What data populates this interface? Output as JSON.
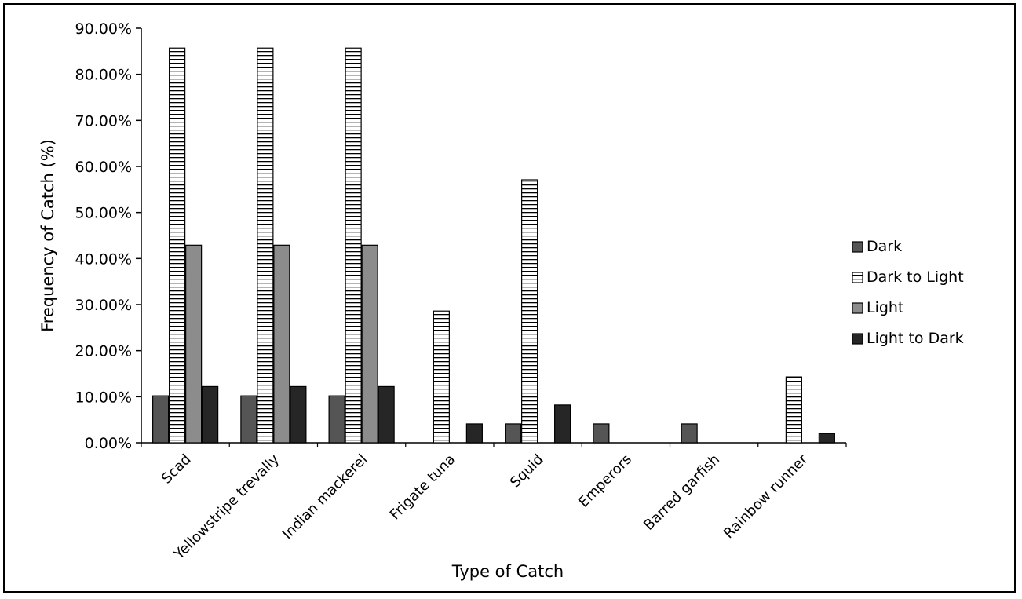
{
  "chart_data": {
    "type": "bar",
    "title": "",
    "xlabel": "Type of Catch",
    "ylabel": "Frequency of Catch (%)",
    "ylim": [
      0,
      90
    ],
    "yticks": [
      "0.00%",
      "10.00%",
      "20.00%",
      "30.00%",
      "40.00%",
      "50.00%",
      "60.00%",
      "70.00%",
      "80.00%",
      "90.00%"
    ],
    "categories": [
      "Scad",
      "Yellowstripe trevally",
      "Indian mackerel",
      "Frigate tuna",
      "Squid",
      "Emperors",
      "Barred garfish",
      "Rainbow runner"
    ],
    "series": [
      {
        "name": "Dark",
        "values": [
          10.2,
          10.2,
          10.2,
          0,
          4.1,
          4.1,
          4.1,
          0
        ],
        "fill": "#555555",
        "pattern": "solid"
      },
      {
        "name": "Dark to Light",
        "values": [
          85.7,
          85.7,
          85.7,
          28.6,
          57.1,
          0,
          0,
          14.3
        ],
        "fill": "#ffffff",
        "pattern": "horizontal-stripes"
      },
      {
        "name": "Light",
        "values": [
          42.9,
          42.9,
          42.9,
          0,
          0,
          0,
          0,
          0
        ],
        "fill": "#8c8c8c",
        "pattern": "solid"
      },
      {
        "name": "Light to Dark",
        "values": [
          12.2,
          12.2,
          12.2,
          4.1,
          8.2,
          0,
          0,
          2.0
        ],
        "fill": "#262626",
        "pattern": "solid"
      }
    ],
    "grid": false,
    "legend": "right"
  }
}
